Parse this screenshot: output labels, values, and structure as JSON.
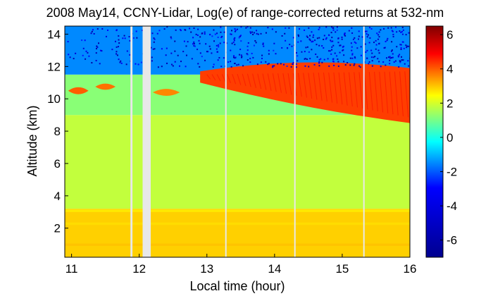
{
  "chart_data": {
    "type": "heatmap",
    "title": "2008 May14, CCNY-Lidar, Log(e) of range-corrected returns at 532-nm",
    "xlabel": "Local time (hour)",
    "ylabel": "Altitude (km)",
    "xlim": [
      10.9,
      16.0
    ],
    "ylim": [
      0.2,
      14.5
    ],
    "xticks": [
      "11",
      "12",
      "13",
      "14",
      "15",
      "16"
    ],
    "xtick_values": [
      11,
      12,
      13,
      14,
      15,
      16
    ],
    "yticks": [
      "2",
      "4",
      "6",
      "8",
      "10",
      "12",
      "14"
    ],
    "ytick_values": [
      2,
      4,
      6,
      8,
      10,
      12,
      14
    ],
    "colorbar": {
      "range": [
        -7,
        6.5
      ],
      "ticks": [
        "6",
        "4",
        "2",
        "0",
        "-2",
        "-4",
        "-6"
      ],
      "tick_values": [
        6,
        4,
        2,
        0,
        -2,
        -4,
        -6
      ],
      "colormap": "jet"
    },
    "data_gaps_hours": [
      [
        11.87,
        11.9
      ],
      [
        12.05,
        12.17
      ],
      [
        13.27,
        13.29
      ],
      [
        14.29,
        14.31
      ],
      [
        15.31,
        15.33
      ]
    ],
    "layers": [
      {
        "feature": "boundary-layer",
        "alt_km": [
          0.2,
          3.2
        ],
        "value": 2.9
      },
      {
        "feature": "free-troposphere",
        "alt_km": [
          3.2,
          9.0
        ],
        "value": 1.8
      },
      {
        "feature": "upper-troposphere",
        "alt_km": [
          9.0,
          11.5
        ],
        "value": 1.2
      },
      {
        "feature": "high-altitude-noise",
        "alt_km": [
          11.5,
          14.5
        ],
        "value": -1.5
      }
    ],
    "cirrus_cloud": [
      {
        "t_start": 10.95,
        "t_end": 11.25,
        "alt_base_km": 10.2,
        "alt_top_km": 10.8,
        "value": 4.0
      },
      {
        "t_start": 11.35,
        "t_end": 11.65,
        "alt_base_km": 10.5,
        "alt_top_km": 11.0,
        "value": 3.8
      },
      {
        "t_start": 12.2,
        "t_end": 12.6,
        "alt_base_km": 10.1,
        "alt_top_km": 10.7,
        "value": 3.6
      },
      {
        "t_start": 12.9,
        "t_end": 16.0,
        "alt_base_start_km": 11.0,
        "alt_base_end_km": 8.5,
        "alt_top_start_km": 11.7,
        "alt_top_end_km": 11.9,
        "value": 4.3
      }
    ]
  }
}
